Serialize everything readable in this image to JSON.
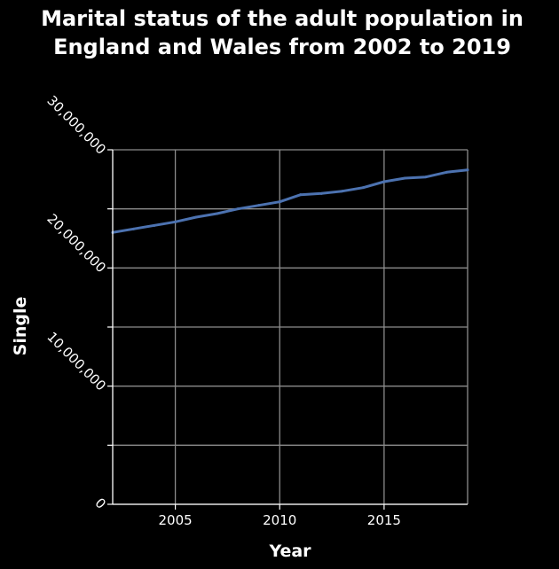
{
  "chart_data": {
    "type": "line",
    "title_lines": [
      "Marital status of the adult population in",
      "England and Wales from 2002 to 2019"
    ],
    "xlabel": "Year",
    "ylabel": "Single",
    "xlim": [
      2002,
      2019
    ],
    "ylim": [
      0,
      30000000
    ],
    "x_ticks": [
      2005,
      2010,
      2015
    ],
    "x_tick_labels": [
      "2005",
      "2010",
      "2015"
    ],
    "y_ticks": [
      0,
      5000000,
      10000000,
      15000000,
      20000000,
      25000000,
      30000000
    ],
    "y_tick_labels": [
      "0",
      "",
      "10,000,000",
      "",
      "20,000,000",
      "",
      "30,000,000"
    ],
    "grid": true,
    "series": [
      {
        "color": "#4c72b0",
        "x": [
          2002,
          2003,
          2004,
          2005,
          2006,
          2007,
          2008,
          2009,
          2010,
          2011,
          2012,
          2013,
          2014,
          2015,
          2016,
          2017,
          2018,
          2019
        ],
        "values": [
          23000000,
          23300000,
          23600000,
          23900000,
          24300000,
          24600000,
          25000000,
          25300000,
          25600000,
          26200000,
          26300000,
          26500000,
          26800000,
          27300000,
          27600000,
          27700000,
          28100000,
          28300000
        ]
      }
    ]
  }
}
